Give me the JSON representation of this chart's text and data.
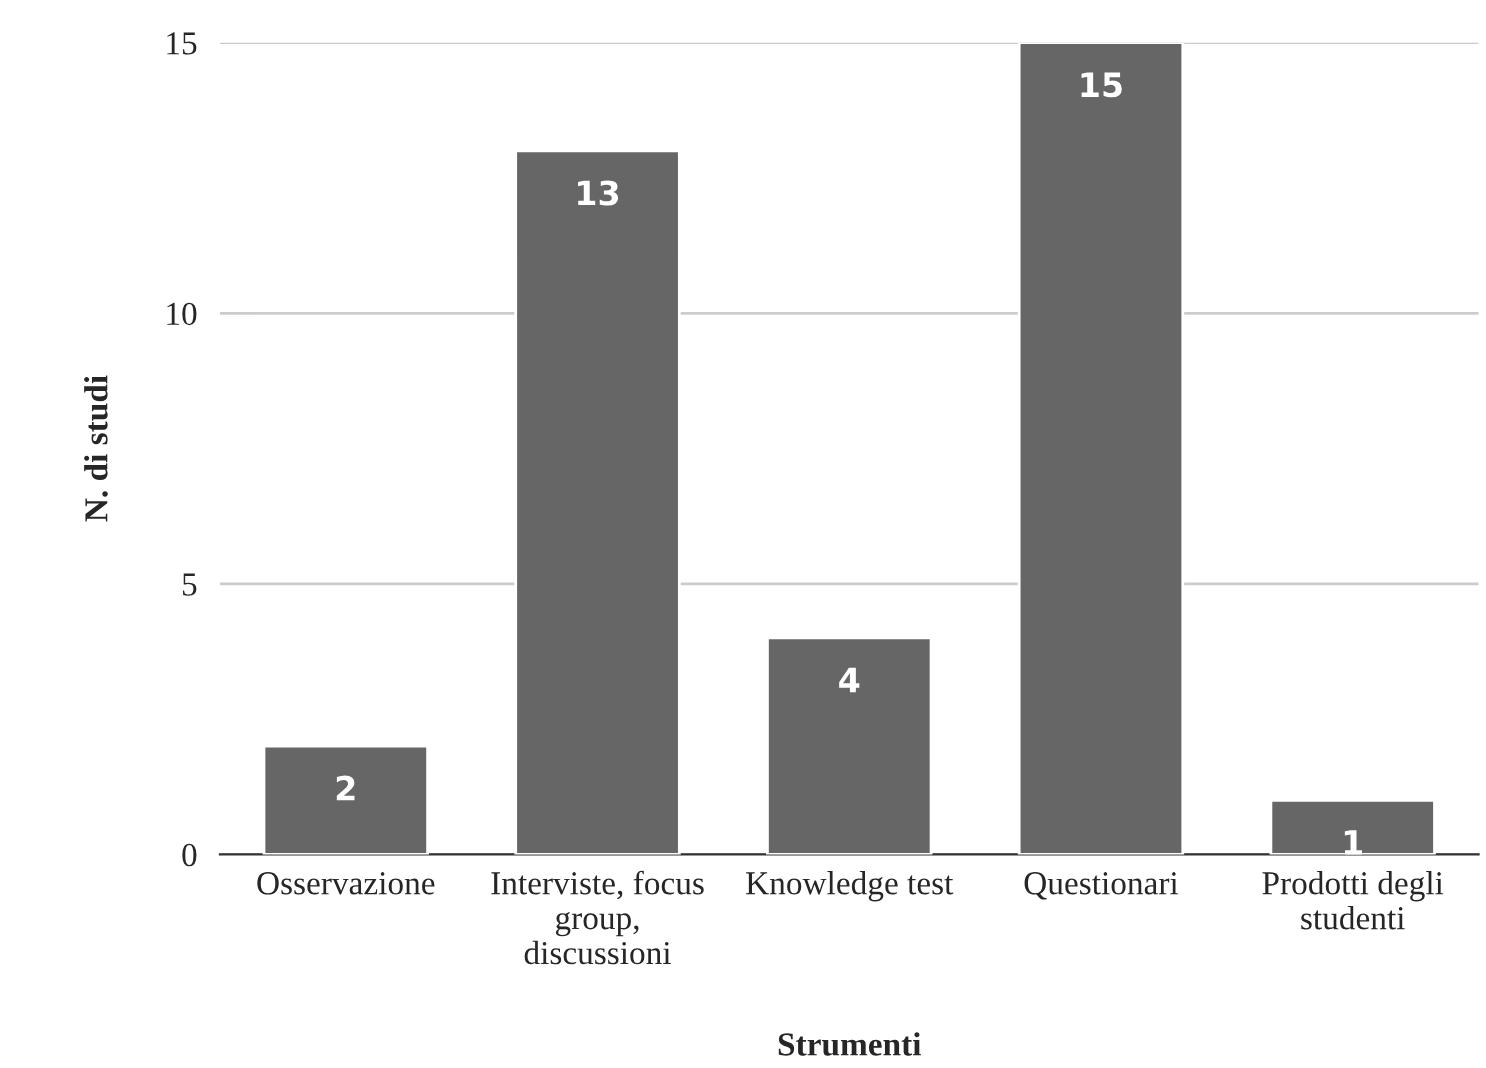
{
  "chart_data": {
    "type": "bar",
    "xlabel": "Strumenti",
    "ylabel": "N. di studi",
    "categories": [
      "Osservazione",
      "Interviste, focus\ngroup,\ndiscussioni",
      "Knowledge test",
      "Questionari",
      "Prodotti degli\nstudenti"
    ],
    "values": [
      2,
      13,
      4,
      15,
      1
    ],
    "color": "#666666",
    "ylim": [
      0,
      15
    ],
    "yticks": [
      0,
      5,
      10,
      15
    ],
    "grid": "y",
    "data_labels": true
  }
}
